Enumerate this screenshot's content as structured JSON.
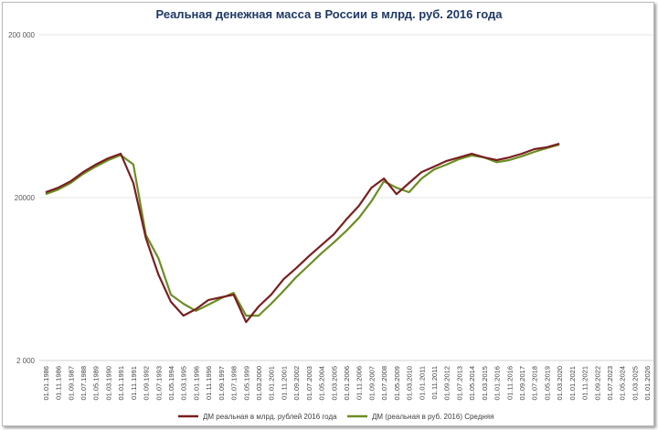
{
  "chart_data": {
    "type": "line",
    "title": "Реальная денежная масса в России в млрд. руб. 2016 года",
    "categories": [
      "01.01.1986",
      "01.11.1986",
      "01.09.1987",
      "01.07.1988",
      "01.05.1989",
      "01.03.1990",
      "01.01.1991",
      "01.11.1991",
      "01.09.1992",
      "01.07.1993",
      "01.05.1994",
      "01.03.1995",
      "01.01.1996",
      "01.11.1996",
      "01.09.1997",
      "01.07.1998",
      "01.05.1999",
      "01.03.2000",
      "01.01.2001",
      "01.11.2001",
      "01.09.2002",
      "01.07.2003",
      "01.05.2004",
      "01.03.2005",
      "01.01.2006",
      "01.11.2006",
      "01.09.2007",
      "01.07.2008",
      "01.05.2009",
      "01.03.2010",
      "01.01.2011",
      "01.11.2011",
      "01.09.2012",
      "01.07.2013",
      "01.05.2014",
      "01.03.2015",
      "01.01.2016",
      "01.11.2016",
      "01.09.2017",
      "01.07.2018",
      "01.05.2019",
      "01.03.2020",
      "01.01.2021",
      "01.11.2021",
      "01.09.2022",
      "01.07.2023",
      "01.05.2024",
      "01.03.2025",
      "01.01.2026"
    ],
    "series": [
      {
        "name": "ДМ реальная в млрд. рублей 2016 года",
        "color": "#7a1f1f",
        "values": [
          21600,
          23000,
          25200,
          28700,
          31900,
          34900,
          37200,
          24600,
          11300,
          6750,
          4580,
          3770,
          4130,
          4700,
          4890,
          5070,
          3440,
          4290,
          5070,
          6320,
          7380,
          8730,
          10200,
          11900,
          14700,
          17800,
          23000,
          26200,
          21000,
          24600,
          28700,
          31000,
          33600,
          35300,
          37200,
          35300,
          34000,
          35300,
          37200,
          39700,
          40800,
          42900,
          null,
          null,
          null,
          null,
          null,
          null,
          null
        ]
      },
      {
        "name": "ДМ (реальная в руб. 2016) Средняя",
        "color": "#6b8e23",
        "values": [
          21000,
          22400,
          24600,
          28000,
          31000,
          34000,
          36500,
          32000,
          11800,
          8500,
          5070,
          4460,
          4030,
          4400,
          4820,
          5200,
          3770,
          3770,
          4460,
          5350,
          6500,
          7680,
          9100,
          10600,
          12500,
          15000,
          19000,
          25200,
          23000,
          21600,
          26200,
          29800,
          31900,
          34500,
          36300,
          35300,
          33000,
          34000,
          35900,
          38200,
          40300,
          42300,
          null,
          null,
          null,
          null,
          null,
          null,
          null
        ]
      }
    ],
    "log_scale": true,
    "ylim": [
      2000,
      200000
    ],
    "yticks": [
      {
        "value": 2000,
        "label": "2 000"
      },
      20000,
      {
        "value": 200000,
        "label": "200 000"
      }
    ],
    "grid": true,
    "legend": "bottom"
  }
}
